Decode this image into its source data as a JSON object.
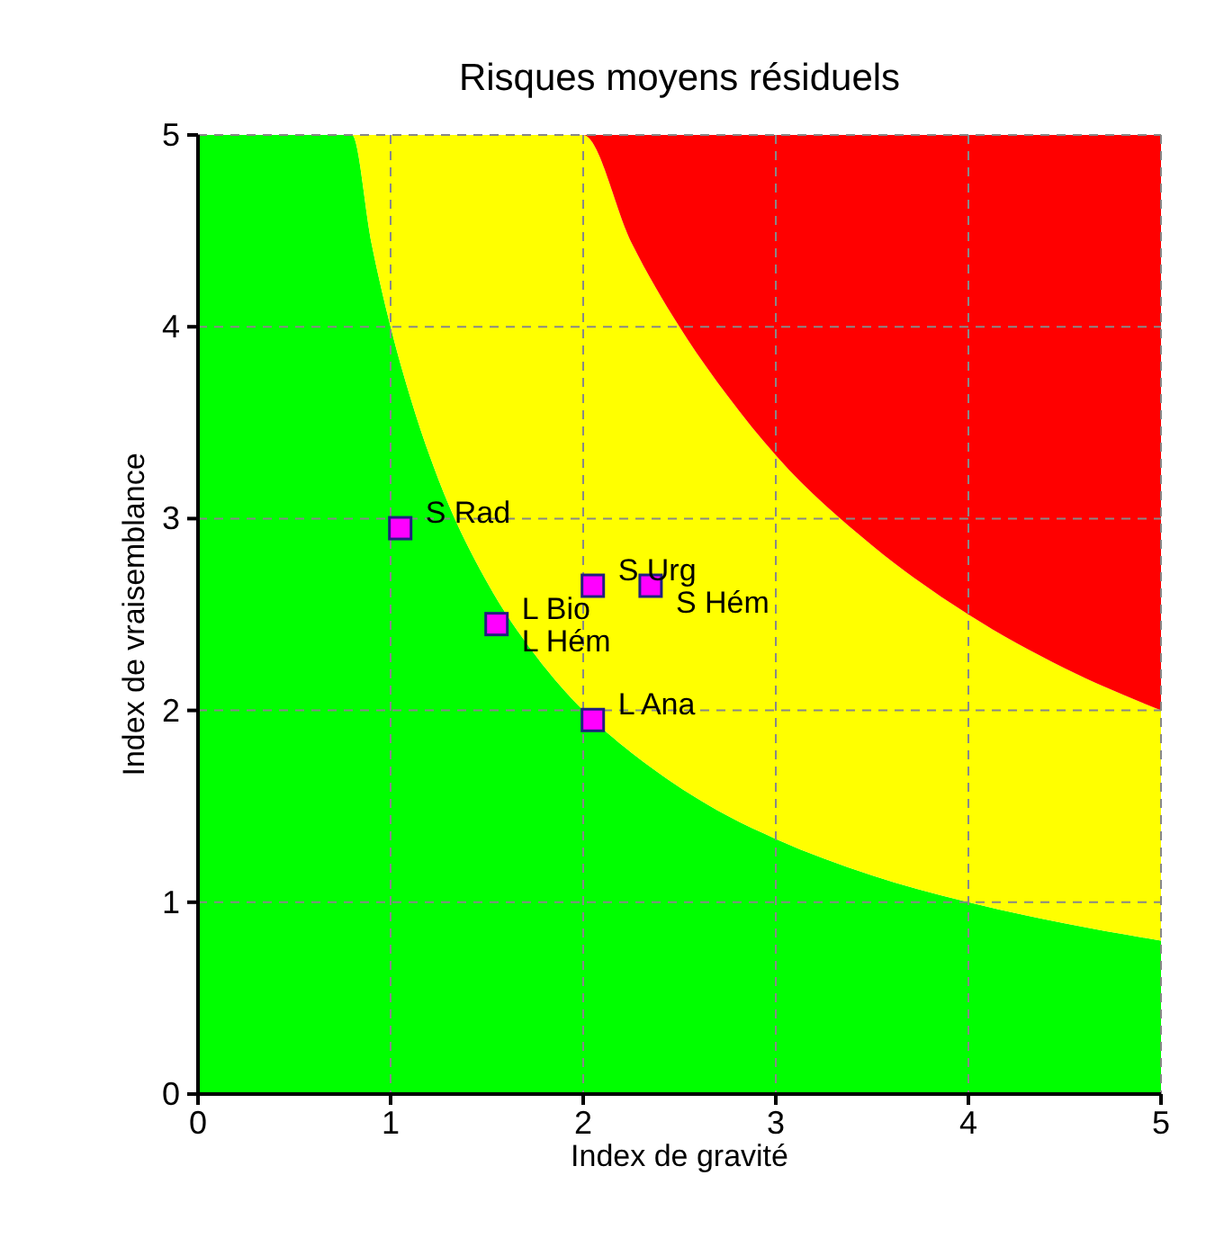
{
  "chart_data": {
    "type": "area",
    "stacked": true,
    "title": "Risques moyens résiduels",
    "xlabel": "Index de gravité",
    "ylabel": "Index de vraisemblance",
    "x": [
      0,
      0.8,
      0.9,
      1,
      1.1,
      1.25,
      1.5,
      1.75,
      2,
      2.25,
      2.5,
      2.75,
      3,
      3.5,
      4,
      4.5,
      5
    ],
    "series": [
      {
        "color": "#00ff00",
        "values": [
          5,
          5,
          4.44,
          4,
          3.64,
          3.2,
          2.67,
          2.29,
          2,
          1.78,
          1.6,
          1.45,
          1.33,
          1.14,
          1,
          0.89,
          0.8
        ]
      },
      {
        "color": "#ffff00",
        "values": [
          0,
          0,
          0.56,
          1,
          1.36,
          1.8,
          2.33,
          2.71,
          3,
          2.66,
          2.4,
          2.19,
          2,
          1.72,
          1.5,
          1.33,
          1.2
        ]
      },
      {
        "color": "#ff0000",
        "values": [
          0,
          0,
          0,
          0,
          0,
          0,
          0,
          0,
          0,
          0.56,
          1,
          1.36,
          1.67,
          2.14,
          2.5,
          2.78,
          3
        ]
      },
      {
        "type": "scatter",
        "color": "#ff00ff",
        "marker": "square",
        "x": [
          1.05,
          1.55,
          2.05,
          2.35,
          2.05
        ],
        "values": [
          2.95,
          2.45,
          2.65,
          2.65,
          1.95
        ]
      }
    ],
    "annotations": [
      {
        "text": "S Rad",
        "x": 1.05,
        "y": 2.95
      },
      {
        "text": "L Bio",
        "x": 1.55,
        "y": 2.45
      },
      {
        "text": "L Hém",
        "x": 1.55,
        "y": 2.45
      },
      {
        "text": "S Urg",
        "x": 2.05,
        "y": 2.65
      },
      {
        "text": "S Hém",
        "x": 2.35,
        "y": 2.65
      },
      {
        "text": "L Ana",
        "x": 2.05,
        "y": 1.95
      }
    ],
    "xlim": [
      0,
      5
    ],
    "ylim": [
      0,
      5
    ],
    "xticks": [
      0,
      1,
      2,
      3,
      4,
      5
    ],
    "yticks": [
      0,
      1,
      2,
      3,
      4,
      5
    ],
    "grid": true
  }
}
